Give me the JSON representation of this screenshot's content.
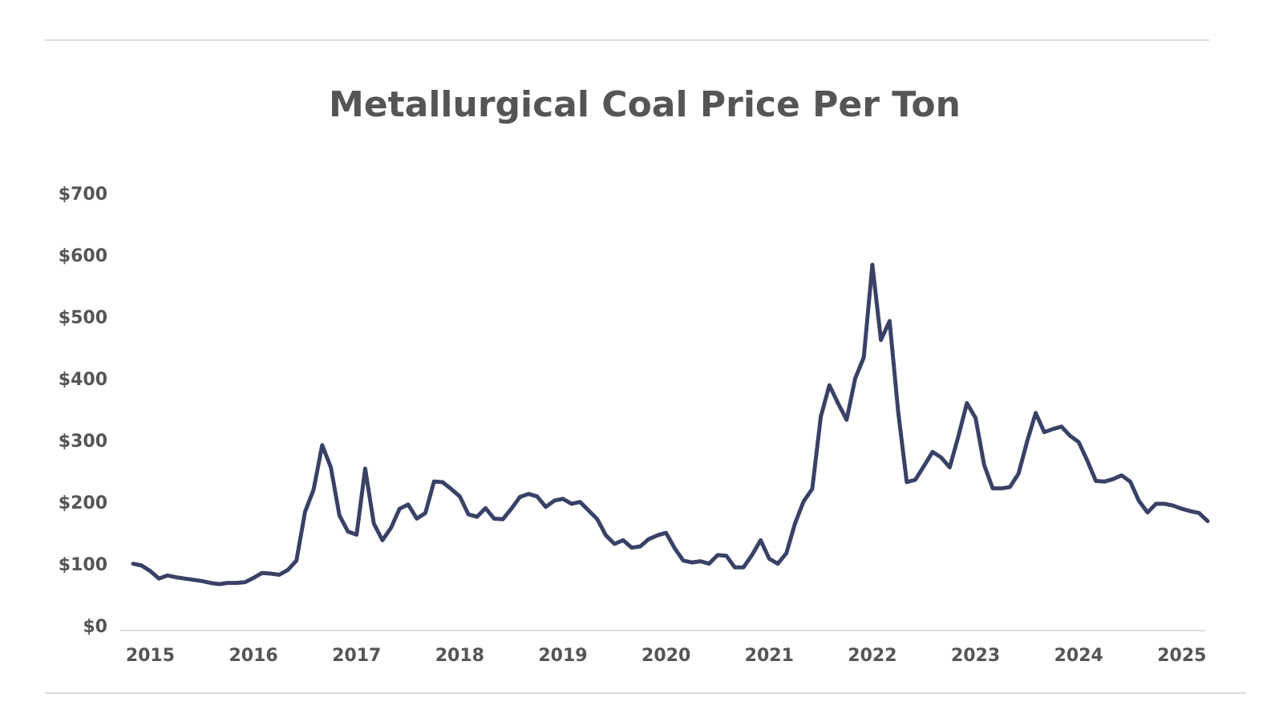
{
  "chart_data": {
    "type": "line",
    "title": "Metallurgical Coal Price Per Ton",
    "categories": [
      null,
      null,
      "2015",
      null,
      null,
      null,
      null,
      null,
      null,
      null,
      null,
      null,
      null,
      null,
      "2016",
      null,
      null,
      null,
      null,
      null,
      null,
      null,
      null,
      null,
      null,
      null,
      "2017",
      null,
      null,
      null,
      null,
      null,
      null,
      null,
      null,
      null,
      null,
      null,
      "2018",
      null,
      null,
      null,
      null,
      null,
      null,
      null,
      null,
      null,
      null,
      null,
      "2019",
      null,
      null,
      null,
      null,
      null,
      null,
      null,
      null,
      null,
      null,
      null,
      "2020",
      null,
      null,
      null,
      null,
      null,
      null,
      null,
      null,
      null,
      null,
      null,
      "2021",
      null,
      null,
      null,
      null,
      null,
      null,
      null,
      null,
      null,
      null,
      null,
      "2022",
      null,
      null,
      null,
      null,
      null,
      null,
      null,
      null,
      null,
      null,
      null,
      "2023",
      null,
      null,
      null,
      null,
      null,
      null,
      null,
      null,
      null,
      null,
      null,
      "2024",
      null,
      null,
      null,
      null,
      null,
      null,
      null,
      null,
      null,
      null,
      null,
      "2025",
      null,
      null,
      null
    ],
    "series": [
      {
        "name": "Metallurgical Coal Price",
        "color": "#3a4166",
        "values": [
          103,
          100,
          91,
          79,
          84,
          81,
          79,
          77,
          75,
          72,
          70,
          72,
          72,
          73,
          80,
          88,
          87,
          85,
          93,
          108,
          187,
          223,
          295,
          259,
          181,
          155,
          150,
          257,
          168,
          141,
          161,
          192,
          199,
          176,
          185,
          236,
          235,
          224,
          212,
          183,
          179,
          193,
          176,
          175,
          192,
          211,
          216,
          212,
          195,
          205,
          208,
          200,
          203,
          189,
          175,
          149,
          135,
          141,
          129,
          131,
          143,
          149,
          153,
          128,
          108,
          105,
          107,
          103,
          117,
          116,
          97,
          97,
          117,
          141,
          111,
          103,
          120,
          168,
          204,
          224,
          341,
          392,
          363,
          336,
          403,
          437,
          587,
          465,
          496,
          349,
          235,
          239,
          261,
          284,
          275,
          259,
          309,
          363,
          339,
          263,
          225,
          225,
          227,
          249,
          301,
          347,
          316,
          321,
          325,
          310,
          300,
          270,
          237,
          236,
          240,
          246,
          236,
          205,
          186,
          200,
          200,
          197,
          192,
          188,
          185,
          172
        ]
      }
    ],
    "ylim": [
      0,
      700
    ],
    "yticks": [
      {
        "value": 0,
        "label": "$0"
      },
      {
        "value": 100,
        "label": "$100"
      },
      {
        "value": 200,
        "label": "$200"
      },
      {
        "value": 300,
        "label": "$300"
      },
      {
        "value": 400,
        "label": "$400"
      },
      {
        "value": 500,
        "label": "$500"
      },
      {
        "value": 600,
        "label": "$600"
      },
      {
        "value": 700,
        "label": "$700"
      }
    ],
    "grid": false
  }
}
